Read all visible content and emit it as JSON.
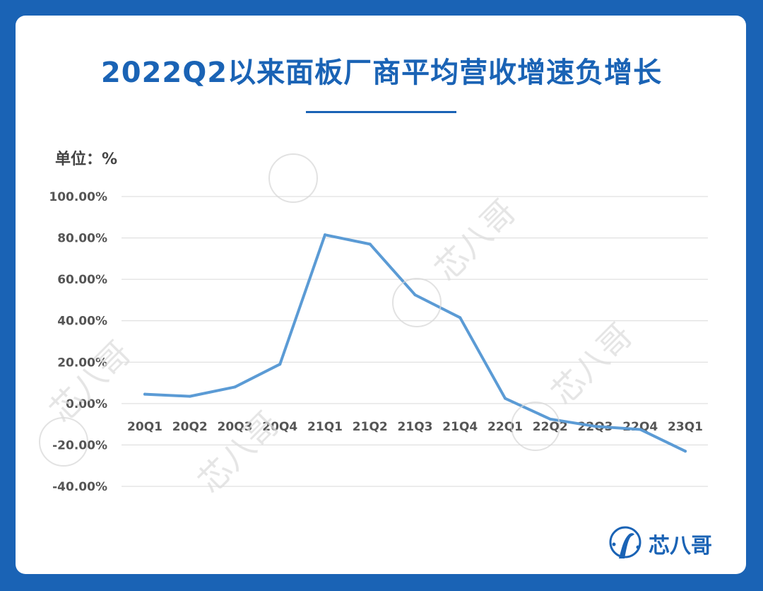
{
  "header": {
    "title": "2022Q2以来面板厂商平均营收增速负增长",
    "unit": "单位：%"
  },
  "brand": {
    "name": "芯八哥",
    "icon": "bird-logo-icon",
    "color": "#1a63b5"
  },
  "watermark": {
    "text": "芯八哥"
  },
  "chart_data": {
    "type": "line",
    "title": "2022Q2以来面板厂商平均营收增速负增长",
    "xlabel": "",
    "ylabel": "单位：%",
    "categories": [
      "20Q1",
      "20Q2",
      "20Q3",
      "20Q4",
      "21Q1",
      "21Q2",
      "21Q3",
      "21Q4",
      "22Q1",
      "22Q2",
      "22Q3",
      "22Q4",
      "23Q1"
    ],
    "series": [
      {
        "values": [
          4.5,
          3.5,
          8.0,
          19.0,
          81.5,
          77.0,
          52.5,
          41.5,
          2.5,
          -7.5,
          -11.0,
          -12.5,
          -23.0
        ],
        "color": "#5b9bd5"
      }
    ],
    "y_ticks": [
      "100.00%",
      "80.00%",
      "60.00%",
      "40.00%",
      "20.00%",
      "0.00%",
      "-20.00%",
      "-40.00%"
    ],
    "ylim": [
      -40,
      100
    ],
    "grid": true,
    "legend": "none"
  }
}
